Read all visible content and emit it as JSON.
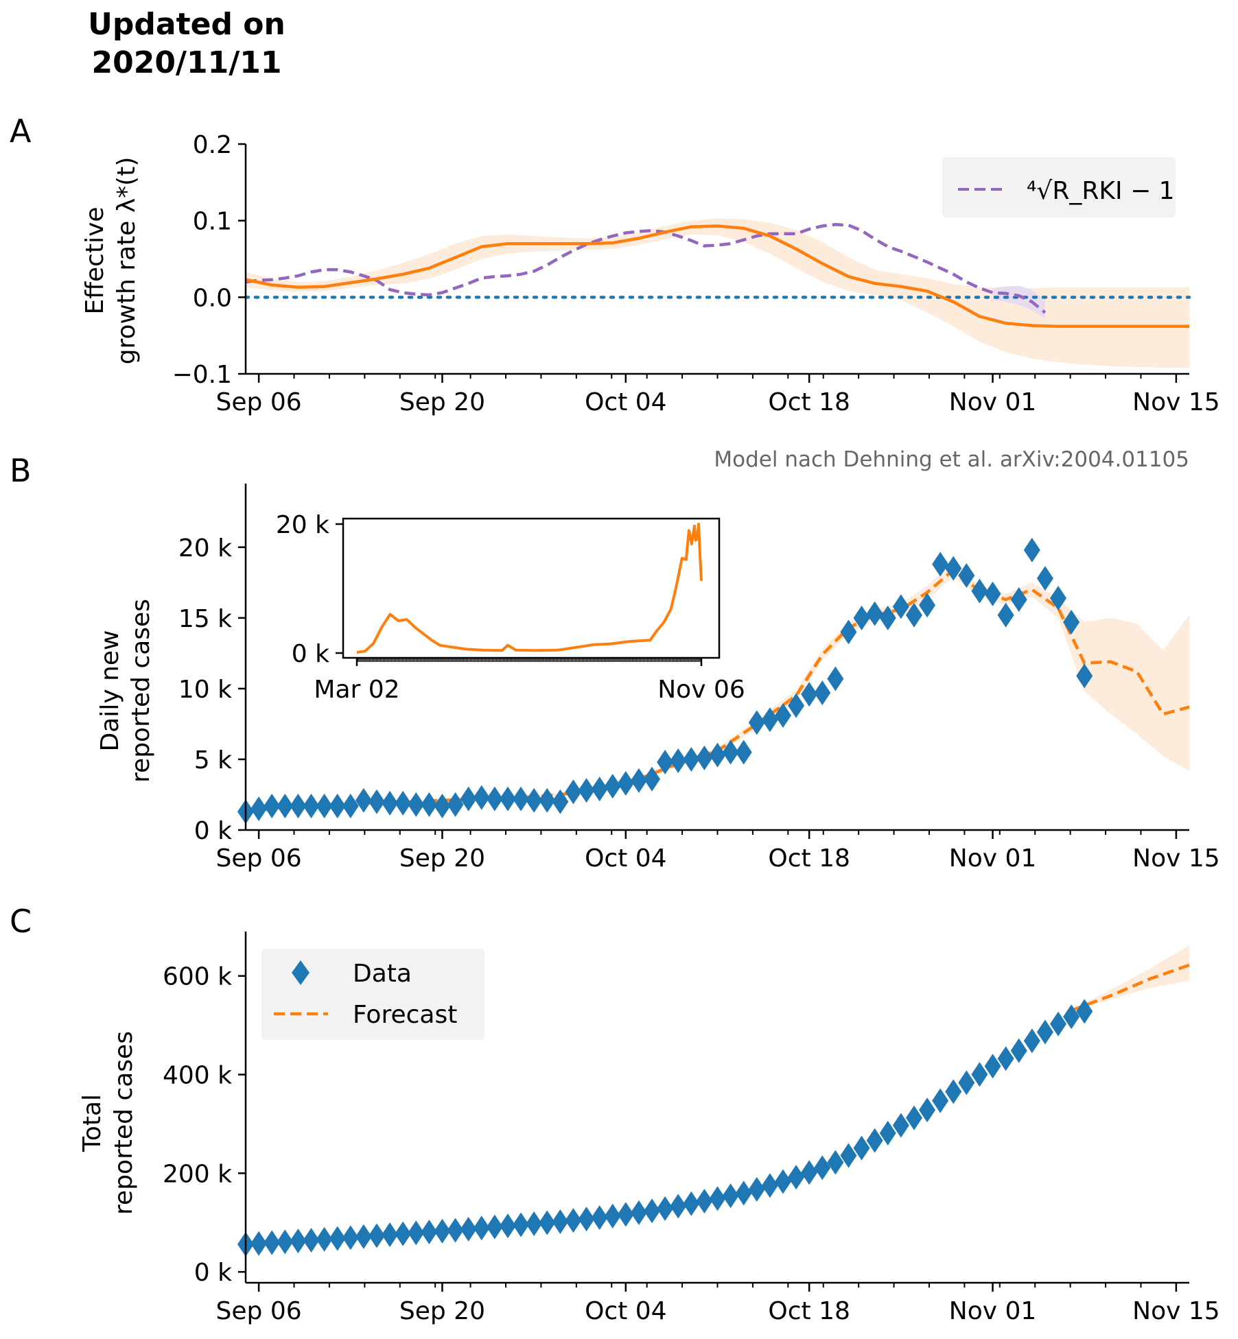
{
  "header": {
    "updated_line1": "Updated on",
    "updated_line2": "2020/11/11"
  },
  "panels": {
    "a": "A",
    "b": "B",
    "c": "C"
  },
  "credit": "Model nach Dehning et al. arXiv:2004.01105",
  "colors": {
    "data": "#1f77b4",
    "model": "#ff7f0e",
    "rki": "#9467bd",
    "band": "#fdebdc",
    "zero_line": "#1f77b4",
    "legend_bg": "#f2f2f2"
  },
  "chart_data": [
    {
      "id": "A",
      "type": "line",
      "xlabel": "",
      "ylabel": [
        "Effective",
        "growth rate λ*(t)"
      ],
      "x_ticks": [
        "Sep 06",
        "Sep 20",
        "Oct 04",
        "Oct 18",
        "Nov 01",
        "Nov 15"
      ],
      "xlim": [
        "2020-09-05",
        "2020-11-16"
      ],
      "y_ticks": [
        "0.2",
        "0.1",
        "0.0",
        "−0.1"
      ],
      "ylim": [
        -0.1,
        0.2
      ],
      "zero_line": 0.0,
      "legend": {
        "placement": "top-right",
        "label": "⁴√R_RKI − 1"
      },
      "series": [
        {
          "kind": "model",
          "x": [
            "2020-09-05",
            "2020-09-07",
            "2020-09-09",
            "2020-09-11",
            "2020-09-13",
            "2020-09-15",
            "2020-09-17",
            "2020-09-19",
            "2020-09-21",
            "2020-09-23",
            "2020-09-25",
            "2020-09-27",
            "2020-09-29",
            "2020-10-01",
            "2020-10-03",
            "2020-10-05",
            "2020-10-07",
            "2020-10-09",
            "2020-10-11",
            "2020-10-13",
            "2020-10-15",
            "2020-10-17",
            "2020-10-19",
            "2020-10-21",
            "2020-10-23",
            "2020-10-25",
            "2020-10-27",
            "2020-10-29",
            "2020-10-31",
            "2020-11-02",
            "2020-11-04",
            "2020-11-06",
            "2020-11-08",
            "2020-11-10",
            "2020-11-12",
            "2020-11-14",
            "2020-11-16"
          ],
          "y": [
            0.023,
            0.016,
            0.013,
            0.014,
            0.019,
            0.024,
            0.03,
            0.038,
            0.052,
            0.066,
            0.07,
            0.07,
            0.07,
            0.07,
            0.071,
            0.077,
            0.085,
            0.092,
            0.093,
            0.09,
            0.08,
            0.063,
            0.044,
            0.027,
            0.018,
            0.014,
            0.008,
            -0.006,
            -0.025,
            -0.034,
            -0.037,
            -0.038,
            -0.038,
            -0.038,
            -0.038,
            -0.038,
            -0.038
          ],
          "lo": [
            0.013,
            0.009,
            0.007,
            0.008,
            0.012,
            0.016,
            0.018,
            0.024,
            0.036,
            0.05,
            0.057,
            0.06,
            0.061,
            0.062,
            0.063,
            0.068,
            0.076,
            0.082,
            0.081,
            0.072,
            0.057,
            0.038,
            0.02,
            0.008,
            0.003,
            -0.004,
            -0.02,
            -0.038,
            -0.058,
            -0.072,
            -0.08,
            -0.085,
            -0.088,
            -0.09,
            -0.091,
            -0.092,
            -0.092
          ],
          "hi": [
            0.033,
            0.024,
            0.02,
            0.021,
            0.027,
            0.035,
            0.045,
            0.056,
            0.07,
            0.08,
            0.082,
            0.08,
            0.078,
            0.077,
            0.078,
            0.085,
            0.093,
            0.1,
            0.103,
            0.102,
            0.097,
            0.088,
            0.072,
            0.052,
            0.036,
            0.03,
            0.025,
            0.017,
            0.013,
            0.012,
            0.012,
            0.013,
            0.013,
            0.013,
            0.013,
            0.013,
            0.013
          ]
        },
        {
          "kind": "rki",
          "name": "⁴√R_RKI − 1",
          "x": [
            "2020-09-05",
            "2020-09-06",
            "2020-09-07",
            "2020-09-08",
            "2020-09-09",
            "2020-09-10",
            "2020-09-11",
            "2020-09-12",
            "2020-09-13",
            "2020-09-14",
            "2020-09-15",
            "2020-09-16",
            "2020-09-17",
            "2020-09-18",
            "2020-09-19",
            "2020-09-20",
            "2020-09-21",
            "2020-09-22",
            "2020-09-23",
            "2020-09-24",
            "2020-09-25",
            "2020-09-26",
            "2020-09-27",
            "2020-09-28",
            "2020-09-29",
            "2020-09-30",
            "2020-10-01",
            "2020-10-02",
            "2020-10-03",
            "2020-10-04",
            "2020-10-05",
            "2020-10-06",
            "2020-10-07",
            "2020-10-08",
            "2020-10-09",
            "2020-10-10",
            "2020-10-11",
            "2020-10-12",
            "2020-10-13",
            "2020-10-14",
            "2020-10-15",
            "2020-10-16",
            "2020-10-17",
            "2020-10-18",
            "2020-10-19",
            "2020-10-20",
            "2020-10-21",
            "2020-10-22",
            "2020-10-23",
            "2020-10-24",
            "2020-10-25",
            "2020-10-26",
            "2020-10-27",
            "2020-10-28",
            "2020-10-29",
            "2020-10-30",
            "2020-10-31",
            "2020-11-01",
            "2020-11-02",
            "2020-11-03",
            "2020-11-04",
            "2020-11-05"
          ],
          "y": [
            0.02,
            0.022,
            0.023,
            0.025,
            0.028,
            0.033,
            0.036,
            0.036,
            0.033,
            0.028,
            0.022,
            0.01,
            0.006,
            0.004,
            0.003,
            0.006,
            0.012,
            0.018,
            0.025,
            0.027,
            0.028,
            0.03,
            0.034,
            0.042,
            0.052,
            0.061,
            0.069,
            0.075,
            0.08,
            0.084,
            0.086,
            0.087,
            0.085,
            0.08,
            0.074,
            0.067,
            0.068,
            0.07,
            0.075,
            0.08,
            0.083,
            0.083,
            0.083,
            0.089,
            0.093,
            0.095,
            0.094,
            0.087,
            0.076,
            0.066,
            0.06,
            0.053,
            0.046,
            0.038,
            0.03,
            0.02,
            0.012,
            0.006,
            0.005,
            0.002,
            -0.006,
            -0.02
          ],
          "lo": [
            0,
            0,
            0,
            0,
            0,
            0,
            0,
            0,
            0,
            0,
            0,
            0,
            0,
            0,
            0,
            0,
            0,
            0,
            0,
            0,
            0,
            0,
            0,
            0,
            0,
            0,
            0,
            0,
            0,
            0,
            0,
            0,
            0,
            0,
            0,
            0,
            0,
            0,
            0,
            0,
            0,
            0,
            0,
            0,
            0,
            0,
            0,
            0,
            0,
            0,
            0,
            0,
            0,
            0,
            0,
            0,
            0,
            -0.003,
            -0.006,
            -0.01,
            -0.017,
            -0.028
          ],
          "hi": [
            0,
            0,
            0,
            0,
            0,
            0,
            0,
            0,
            0,
            0,
            0,
            0,
            0,
            0,
            0,
            0,
            0,
            0,
            0,
            0,
            0,
            0,
            0,
            0,
            0,
            0,
            0,
            0,
            0,
            0,
            0,
            0,
            0,
            0,
            0,
            0,
            0,
            0,
            0,
            0,
            0,
            0,
            0,
            0,
            0,
            0,
            0,
            0,
            0,
            0,
            0,
            0,
            0,
            0,
            0,
            0,
            0,
            0.012,
            0.014,
            0.015,
            0.01,
            -0.005
          ]
        }
      ]
    },
    {
      "id": "B",
      "type": "scatter",
      "xlabel": "",
      "ylabel": [
        "Daily new",
        "reported cases"
      ],
      "x_ticks": [
        "Sep 06",
        "Sep 20",
        "Oct 04",
        "Oct 18",
        "Nov 01",
        "Nov 15"
      ],
      "xlim": [
        "2020-09-05",
        "2020-11-16"
      ],
      "y_ticks": [
        "20 k",
        "15 k",
        "10 k",
        "5 k",
        "0 k"
      ],
      "ylim": [
        0,
        24500
      ],
      "series": [
        {
          "name": "Data",
          "x_start": "2020-09-05",
          "y": [
            1300,
            1500,
            1700,
            1700,
            1700,
            1700,
            1700,
            1700,
            1700,
            2100,
            2000,
            1900,
            1900,
            1800,
            1800,
            1700,
            1800,
            2200,
            2300,
            2200,
            2200,
            2200,
            2100,
            2100,
            2000,
            2700,
            2800,
            2900,
            3100,
            3300,
            3500,
            3600,
            4800,
            4900,
            5000,
            5100,
            5300,
            5500,
            5500,
            7600,
            7800,
            8100,
            8800,
            9600,
            9700,
            10700,
            14000,
            15000,
            15300,
            15000,
            15800,
            15200,
            15900,
            18800,
            18500,
            18000,
            16900,
            16700,
            15200,
            16300,
            19800,
            17800,
            16400,
            14700,
            10900
          ]
        },
        {
          "name": "Forecast",
          "x": [
            "2020-09-05",
            "2020-09-08",
            "2020-09-11",
            "2020-09-14",
            "2020-09-17",
            "2020-09-20",
            "2020-09-23",
            "2020-09-26",
            "2020-09-29",
            "2020-10-02",
            "2020-10-05",
            "2020-10-08",
            "2020-10-11",
            "2020-10-14",
            "2020-10-17",
            "2020-10-19",
            "2020-10-21",
            "2020-10-23",
            "2020-10-25",
            "2020-10-27",
            "2020-10-29",
            "2020-10-31",
            "2020-11-02",
            "2020-11-04",
            "2020-11-06",
            "2020-11-08",
            "2020-11-10",
            "2020-11-12",
            "2020-11-14",
            "2020-11-16"
          ],
          "y": [
            1300,
            1600,
            1700,
            1900,
            2000,
            2100,
            2200,
            2300,
            2500,
            2900,
            3600,
            4700,
            5600,
            7500,
            9500,
            12400,
            14300,
            15200,
            15600,
            16800,
            18400,
            16900,
            16300,
            17000,
            15700,
            11800,
            11900,
            11200,
            8200,
            8700
          ],
          "lo": [
            1200,
            1500,
            1600,
            1800,
            1900,
            2000,
            2100,
            2200,
            2400,
            2800,
            3400,
            4500,
            5400,
            7200,
            9100,
            12000,
            13900,
            14800,
            15200,
            16300,
            17900,
            16500,
            15900,
            16500,
            15000,
            9800,
            8200,
            6800,
            5200,
            4200
          ],
          "hi": [
            1400,
            1700,
            1800,
            2000,
            2100,
            2200,
            2300,
            2400,
            2600,
            3000,
            3800,
            4900,
            5800,
            7800,
            9900,
            12800,
            14700,
            15600,
            16000,
            17300,
            18900,
            17300,
            16700,
            17500,
            16400,
            14700,
            15000,
            14600,
            12700,
            15200
          ]
        }
      ],
      "inset": {
        "type": "line",
        "x_ticks": [
          "Mar 02",
          "Nov 06"
        ],
        "xlim": [
          "2020-03-02",
          "2020-11-06"
        ],
        "y_ticks": [
          "20 k",
          "0 k"
        ],
        "ylim": [
          0,
          20000
        ],
        "x": [
          "2020-03-02",
          "2020-03-08",
          "2020-03-14",
          "2020-03-20",
          "2020-03-26",
          "2020-04-01",
          "2020-04-07",
          "2020-04-13",
          "2020-04-19",
          "2020-04-25",
          "2020-05-01",
          "2020-05-10",
          "2020-05-20",
          "2020-06-01",
          "2020-06-15",
          "2020-06-19",
          "2020-06-25",
          "2020-07-10",
          "2020-07-25",
          "2020-08-05",
          "2020-08-20",
          "2020-09-01",
          "2020-09-15",
          "2020-09-30",
          "2020-10-05",
          "2020-10-10",
          "2020-10-15",
          "2020-10-18",
          "2020-10-20",
          "2020-10-23",
          "2020-10-26",
          "2020-10-28",
          "2020-10-30",
          "2020-11-01",
          "2020-11-02",
          "2020-11-03",
          "2020-11-04",
          "2020-11-05",
          "2020-11-06"
        ],
        "y": [
          100,
          300,
          1500,
          4000,
          6000,
          5000,
          5200,
          4000,
          3000,
          2000,
          1200,
          900,
          600,
          450,
          400,
          1200,
          450,
          400,
          450,
          800,
          1300,
          1400,
          1800,
          2000,
          3500,
          4800,
          6800,
          9500,
          11500,
          14700,
          14500,
          19000,
          16900,
          19700,
          17500,
          17800,
          20000,
          15200,
          11200
        ]
      }
    },
    {
      "id": "C",
      "type": "scatter",
      "xlabel": "",
      "ylabel": [
        "Total",
        "reported cases"
      ],
      "x_ticks": [
        "Sep 06",
        "Sep 20",
        "Oct 04",
        "Oct 18",
        "Nov 01",
        "Nov 15"
      ],
      "xlim": [
        "2020-09-05",
        "2020-11-16"
      ],
      "y_ticks": [
        "600 k",
        "400 k",
        "200 k",
        "0 k"
      ],
      "ylim": [
        -22000,
        690000
      ],
      "legend": {
        "placement": "top-left",
        "entries": [
          "Data",
          "Forecast"
        ]
      },
      "series": [
        {
          "name": "Data",
          "x_start": "2020-09-05",
          "y": [
            56000,
            57600,
            59300,
            60900,
            62600,
            64300,
            66000,
            67700,
            69400,
            71500,
            73500,
            75400,
            77300,
            79100,
            80900,
            82600,
            84400,
            86600,
            88900,
            91100,
            93300,
            95500,
            97600,
            99700,
            101700,
            104400,
            107200,
            110100,
            113200,
            116500,
            120000,
            123600,
            128400,
            133300,
            138300,
            143400,
            148700,
            154200,
            159700,
            167300,
            175100,
            183200,
            192000,
            201600,
            211300,
            222000,
            236000,
            251000,
            266300,
            281300,
            297100,
            312300,
            328200,
            347000,
            365500,
            383500,
            400400,
            417100,
            432300,
            448600,
            468400,
            486200,
            502600,
            517300,
            528200
          ]
        },
        {
          "name": "Forecast",
          "x": [
            "2020-11-07",
            "2020-11-10",
            "2020-11-13",
            "2020-11-16"
          ],
          "y": [
            530000,
            560000,
            594000,
            622000
          ],
          "lo": [
            528000,
            552000,
            576000,
            590000
          ],
          "hi": [
            532000,
            572000,
            615000,
            662000
          ]
        }
      ]
    }
  ]
}
